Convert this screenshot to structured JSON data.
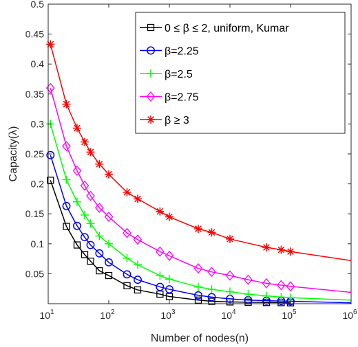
{
  "chart_data": {
    "type": "line",
    "xlabel": "Number of nodes(n)",
    "ylabel": "Capacity(λ)",
    "xscale": "log",
    "xlim": [
      10,
      1000000
    ],
    "ylim": [
      0,
      0.5
    ],
    "x_ticks": [
      {
        "base": "10",
        "exp": "1",
        "value": 10
      },
      {
        "base": "10",
        "exp": "2",
        "value": 100
      },
      {
        "base": "10",
        "exp": "3",
        "value": 1000
      },
      {
        "base": "10",
        "exp": "4",
        "value": 10000
      },
      {
        "base": "10",
        "exp": "5",
        "value": 100000
      },
      {
        "base": "10",
        "exp": "6",
        "value": 1000000
      }
    ],
    "y_ticks": [
      "0.05",
      "0.1",
      "0.15",
      "0.2",
      "0.25",
      "0.3",
      "0.35",
      "0.4",
      "0.45",
      "0.5"
    ],
    "grid": false,
    "legend_position": "top-right",
    "series": [
      {
        "name": "0 ≤ β ≤ 2, uniform, Kumar",
        "color": "#000000",
        "marker": "square",
        "points": [
          [
            10.9,
            0.206
          ],
          [
            20,
            0.129
          ],
          [
            30,
            0.098
          ],
          [
            40,
            0.082
          ],
          [
            50,
            0.071
          ],
          [
            70,
            0.055
          ],
          [
            100,
            0.047
          ],
          [
            200,
            0.03
          ],
          [
            300,
            0.023
          ],
          [
            700,
            0.016
          ],
          [
            1000,
            0.012
          ],
          [
            3000,
            0.006
          ],
          [
            5000,
            0.004
          ],
          [
            10000,
            0.003
          ],
          [
            20000,
            0.0025
          ],
          [
            40000,
            0.002
          ],
          [
            70000,
            0.0018
          ],
          [
            100000,
            0.0015
          ]
        ]
      },
      {
        "name": "β=2.25",
        "color": "#0000ff",
        "marker": "circle",
        "points": [
          [
            10.9,
            0.248
          ],
          [
            20,
            0.163
          ],
          [
            30,
            0.13
          ],
          [
            40,
            0.111
          ],
          [
            50,
            0.098
          ],
          [
            70,
            0.084
          ],
          [
            100,
            0.069
          ],
          [
            200,
            0.049
          ],
          [
            300,
            0.04
          ],
          [
            700,
            0.028
          ],
          [
            1000,
            0.024
          ],
          [
            3000,
            0.014
          ],
          [
            5000,
            0.011
          ],
          [
            10000,
            0.008
          ],
          [
            20000,
            0.006
          ],
          [
            40000,
            0.005
          ],
          [
            70000,
            0.0045
          ],
          [
            100000,
            0.004
          ]
        ],
        "curve_end": [
          1000000,
          0.0015
        ]
      },
      {
        "name": "β=2.5",
        "color": "#00ff00",
        "marker": "plus",
        "points": [
          [
            10.9,
            0.3
          ],
          [
            20,
            0.207
          ],
          [
            30,
            0.17
          ],
          [
            40,
            0.148
          ],
          [
            50,
            0.134
          ],
          [
            70,
            0.113
          ],
          [
            100,
            0.1
          ],
          [
            200,
            0.076
          ],
          [
            300,
            0.065
          ],
          [
            700,
            0.047
          ],
          [
            1000,
            0.041
          ],
          [
            3000,
            0.028
          ],
          [
            5000,
            0.024
          ],
          [
            10000,
            0.02
          ],
          [
            20000,
            0.016
          ],
          [
            40000,
            0.013
          ],
          [
            70000,
            0.011
          ],
          [
            100000,
            0.01
          ]
        ],
        "curve_end": [
          1000000,
          0.006
        ]
      },
      {
        "name": "β=2.75",
        "color": "#ff00ff",
        "marker": "diamond",
        "points": [
          [
            10.9,
            0.36
          ],
          [
            20,
            0.263
          ],
          [
            30,
            0.222
          ],
          [
            40,
            0.197
          ],
          [
            50,
            0.18
          ],
          [
            70,
            0.16
          ],
          [
            100,
            0.145
          ],
          [
            200,
            0.118
          ],
          [
            300,
            0.107
          ],
          [
            700,
            0.087
          ],
          [
            1000,
            0.08
          ],
          [
            3000,
            0.059
          ],
          [
            5000,
            0.053
          ],
          [
            10000,
            0.047
          ],
          [
            20000,
            0.04
          ],
          [
            40000,
            0.034
          ],
          [
            70000,
            0.031
          ],
          [
            100000,
            0.029
          ]
        ],
        "curve_end": [
          1000000,
          0.019
        ]
      },
      {
        "name": "β ≥ 3",
        "color": "#ff0000",
        "marker": "asterisk",
        "points": [
          [
            10.9,
            0.433
          ],
          [
            20,
            0.333
          ],
          [
            30,
            0.293
          ],
          [
            40,
            0.27
          ],
          [
            50,
            0.253
          ],
          [
            70,
            0.233
          ],
          [
            100,
            0.216
          ],
          [
            200,
            0.186
          ],
          [
            300,
            0.175
          ],
          [
            700,
            0.154
          ],
          [
            1000,
            0.145
          ],
          [
            3000,
            0.125
          ],
          [
            5000,
            0.119
          ],
          [
            10000,
            0.108
          ],
          [
            40000,
            0.094
          ],
          [
            70000,
            0.09
          ],
          [
            100000,
            0.087
          ]
        ],
        "curve_end": [
          1000000,
          0.072
        ]
      }
    ]
  }
}
